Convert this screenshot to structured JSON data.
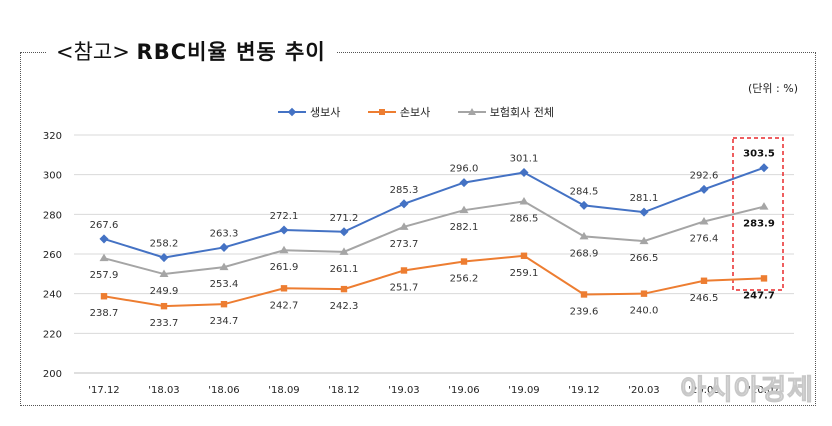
{
  "title_prefix": "<참고>",
  "title_main": "RBC비율 변동 추이",
  "unit": "(단위 : %)",
  "watermark": "아시아경제",
  "colors": {
    "series_life": "#4472C4",
    "series_nonlife": "#ED7D31",
    "series_total": "#A5A5A5",
    "highlight_box": "#E8282B"
  },
  "chart_data": {
    "type": "line",
    "x": [
      "'17.12",
      "'18.03",
      "'18.06",
      "'18.09",
      "'18.12",
      "'19.03",
      "'19.06",
      "'19.09",
      "'19.12",
      "'20.03",
      "'20.06",
      "'20.07"
    ],
    "ylim": [
      200,
      320
    ],
    "yticks": [
      200,
      220,
      240,
      260,
      280,
      300,
      320
    ],
    "grid": true,
    "legend_placement": "top-center",
    "series": [
      {
        "name": "생보사",
        "marker": "diamond",
        "values": [
          267.6,
          258.2,
          263.3,
          272.1,
          271.2,
          285.3,
          296.0,
          301.1,
          284.5,
          281.1,
          292.6,
          303.5
        ]
      },
      {
        "name": "손보사",
        "marker": "square",
        "values": [
          238.7,
          233.7,
          234.7,
          242.7,
          242.3,
          251.7,
          256.2,
          259.1,
          239.6,
          240.0,
          246.5,
          247.7
        ]
      },
      {
        "name": "보험회사 전체",
        "marker": "triangle",
        "values": [
          257.9,
          249.9,
          253.4,
          261.9,
          261.1,
          273.7,
          282.1,
          286.5,
          268.9,
          266.5,
          276.4,
          283.9
        ]
      }
    ],
    "labels_bold_last": true
  }
}
